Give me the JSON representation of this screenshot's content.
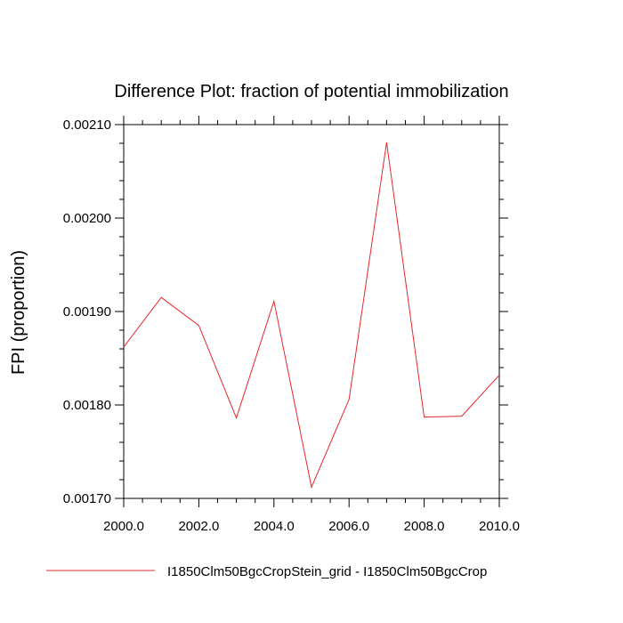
{
  "chart_data": {
    "type": "line",
    "title": "Difference Plot: fraction of potential immobilization",
    "xlabel": "",
    "ylabel": "FPI  (proportion)",
    "xlim": [
      2000,
      2010
    ],
    "ylim": [
      0.0017,
      0.0021
    ],
    "x": [
      2000,
      2001,
      2002,
      2003,
      2004,
      2005,
      2006,
      2007,
      2008,
      2009,
      2010
    ],
    "xticks": [
      "2000.0",
      "2002.0",
      "2004.0",
      "2006.0",
      "2008.0",
      "2010.0"
    ],
    "xtick_values": [
      2000,
      2002,
      2004,
      2006,
      2008,
      2010
    ],
    "yticks": [
      "0.00170",
      "0.00180",
      "0.00190",
      "0.00200",
      "0.00210"
    ],
    "ytick_values": [
      0.0017,
      0.0018,
      0.0019,
      0.002,
      0.0021
    ],
    "series": [
      {
        "name": "I1850Clm50BgcCropStein_grid - I1850Clm50BgcCrop",
        "color": "#e8262a",
        "values": [
          0.001862,
          0.001915,
          0.001885,
          0.001786,
          0.001911,
          0.001712,
          0.001806,
          0.002081,
          0.001787,
          0.001788,
          0.001832
        ]
      }
    ],
    "grid": false,
    "legend_position": "bottom"
  }
}
